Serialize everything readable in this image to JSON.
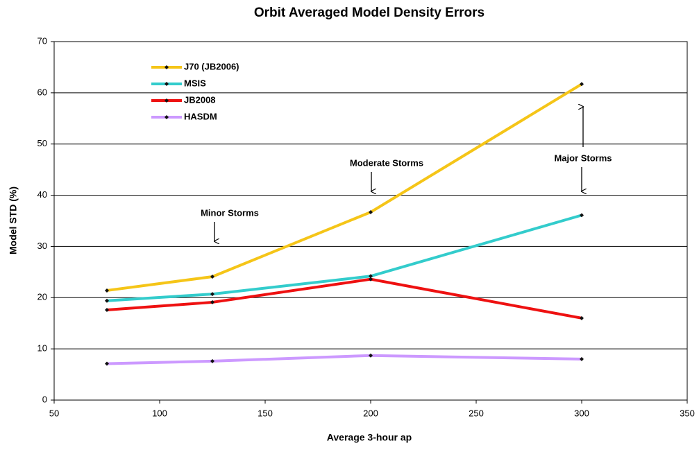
{
  "chart_data": {
    "type": "line",
    "title": "Orbit Averaged Model Density Errors",
    "x_label": "Average 3-hour ap",
    "y_label": "Model STD (%)",
    "x": [
      75,
      125,
      200,
      300
    ],
    "series": [
      {
        "name": "J70 (JB2006)",
        "color": "#f5c518",
        "values": [
          21.4,
          24.1,
          36.7,
          61.7
        ]
      },
      {
        "name": "MSIS",
        "color": "#33cccc",
        "values": [
          19.4,
          20.7,
          24.2,
          36.1
        ]
      },
      {
        "name": "JB2008",
        "color": "#ee1111",
        "values": [
          17.6,
          19.1,
          23.6,
          16.0
        ]
      },
      {
        "name": "HASDM",
        "color": "#cc99ff",
        "values": [
          7.1,
          7.6,
          8.7,
          8.0
        ]
      }
    ],
    "annotations": [
      "Minor Storms",
      "Moderate Storms",
      "Major Storms"
    ],
    "xlim": [
      50,
      350
    ],
    "xticks": [
      50,
      100,
      150,
      200,
      250,
      300,
      350
    ],
    "ylim": [
      0,
      70
    ],
    "yticks": [
      0,
      10,
      20,
      30,
      40,
      50,
      60,
      70
    ],
    "grid": true,
    "legend": "upper left"
  }
}
